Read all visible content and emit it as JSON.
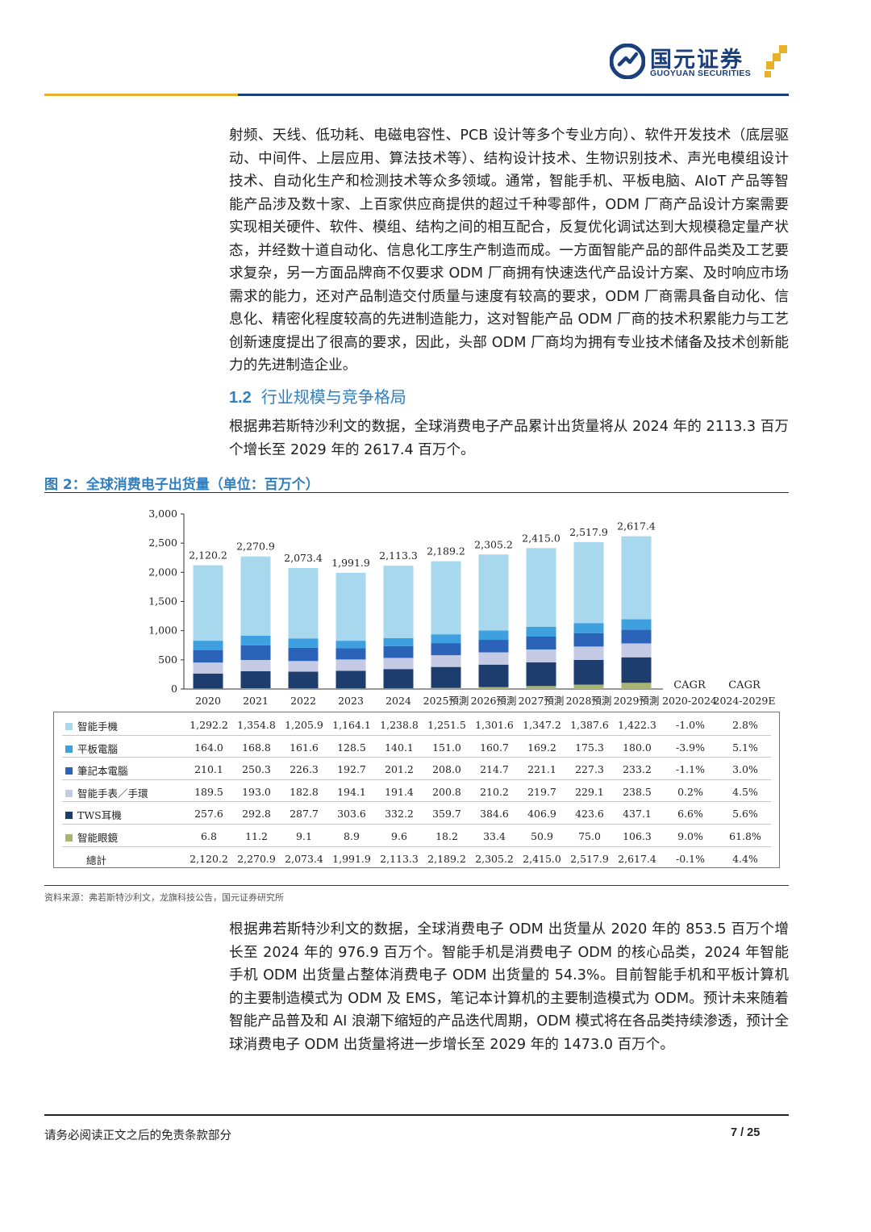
{
  "header": {
    "logo_cn": "国元证券",
    "logo_en": "GUOYUAN SECURITIES",
    "brand_color": "#1b3f7a",
    "accent_color": "#e9b02a"
  },
  "paragraph1": "射频、天线、低功耗、电磁电容性、PCB 设计等多个专业方向）、软件开发技术（底层驱动、中间件、上层应用、算法技术等）、结构设计技术、生物识别技术、声光电模组设计技术、自动化生产和检测技术等众多领域。通常，智能手机、平板电脑、AIoT 产品等智能产品涉及数十家、上百家供应商提供的超过千种零部件，ODM 厂商产品设计方案需要实现相关硬件、软件、模组、结构之间的相互配合，反复优化调试达到大规模稳定量产状态，并经数十道自动化、信息化工序生产制造而成。一方面智能产品的部件品类及工艺要求复杂，另一方面品牌商不仅要求 ODM 厂商拥有快速迭代产品设计方案、及时响应市场需求的能力，还对产品制造交付质量与速度有较高的要求，ODM 厂商需具备自动化、信息化、精密化程度较高的先进制造能力，这对智能产品 ODM 厂商的技术积累能力与工艺创新速度提出了很高的要求，因此，头部 ODM 厂商均为拥有专业技术储备及技术创新能力的先进制造企业。",
  "section": {
    "number": "1.2",
    "title": "行业规模与竞争格局"
  },
  "paragraph2": "根据弗若斯特沙利文的数据，全球消费电子产品累计出货量将从 2024 年的 2113.3 百万个增长至 2029 年的 2617.4 百万个。",
  "figure_title": "图 2：全球消费电子出货量（单位：百万个）",
  "chart_data": {
    "type": "bar",
    "stacked": true,
    "categories": [
      "2020",
      "2021",
      "2022",
      "2023",
      "2024",
      "2025預測",
      "2026預測",
      "2027預測",
      "2028預測",
      "2029預測"
    ],
    "yticks": [
      "0",
      "500",
      "1,000",
      "1,500",
      "2,000",
      "2,500",
      "3,000"
    ],
    "ylim": [
      0,
      3000
    ],
    "totals_labels": [
      "2,120.2",
      "2,270.9",
      "2,073.4",
      "1,991.9",
      "2,113.3",
      "2,189.2",
      "2,305.2",
      "2,415.0",
      "2,517.9",
      "2,617.4"
    ],
    "cagr_headers": [
      [
        "CAGR",
        "2020-2024"
      ],
      [
        "CAGR",
        "2024-2029E"
      ]
    ],
    "series": [
      {
        "name": "智能手機",
        "color": "#a8d8ee",
        "values": [
          1292.2,
          1354.8,
          1205.9,
          1164.1,
          1238.8,
          1251.5,
          1301.6,
          1347.2,
          1387.6,
          1422.3
        ],
        "labels": [
          "1,292.2",
          "1,354.8",
          "1,205.9",
          "1,164.1",
          "1,238.8",
          "1,251.5",
          "1,301.6",
          "1,347.2",
          "1,387.6",
          "1,422.3"
        ],
        "cagr": [
          "-1.0%",
          "2.8%"
        ]
      },
      {
        "name": "平板電腦",
        "color": "#3fa0e0",
        "values": [
          164.0,
          168.8,
          161.6,
          128.5,
          140.1,
          151.0,
          160.7,
          169.2,
          175.3,
          180.0
        ],
        "labels": [
          "164.0",
          "168.8",
          "161.6",
          "128.5",
          "140.1",
          "151.0",
          "160.7",
          "169.2",
          "175.3",
          "180.0"
        ],
        "cagr": [
          "-3.9%",
          "5.1%"
        ]
      },
      {
        "name": "筆記本電腦",
        "color": "#2b63b8",
        "values": [
          210.1,
          250.3,
          226.3,
          192.7,
          201.2,
          208.0,
          214.7,
          221.1,
          227.3,
          233.2
        ],
        "labels": [
          "210.1",
          "250.3",
          "226.3",
          "192.7",
          "201.2",
          "208.0",
          "214.7",
          "221.1",
          "227.3",
          "233.2"
        ],
        "cagr": [
          "-1.1%",
          "3.0%"
        ]
      },
      {
        "name": "智能手表／手環",
        "color": "#c4c9e4",
        "values": [
          189.5,
          193.0,
          182.8,
          194.1,
          191.4,
          200.8,
          210.2,
          219.7,
          229.1,
          238.5
        ],
        "labels": [
          "189.5",
          "193.0",
          "182.8",
          "194.1",
          "191.4",
          "200.8",
          "210.2",
          "219.7",
          "229.1",
          "238.5"
        ],
        "cagr": [
          "0.2%",
          "4.5%"
        ]
      },
      {
        "name": "TWS耳機",
        "color": "#1c3d6e",
        "values": [
          257.6,
          292.8,
          287.7,
          303.6,
          332.2,
          359.7,
          384.6,
          406.9,
          423.6,
          437.1
        ],
        "labels": [
          "257.6",
          "292.8",
          "287.7",
          "303.6",
          "332.2",
          "359.7",
          "384.6",
          "406.9",
          "423.6",
          "437.1"
        ],
        "cagr": [
          "6.6%",
          "5.6%"
        ]
      },
      {
        "name": "智能眼鏡",
        "color": "#a9b56e",
        "values": [
          6.8,
          11.2,
          9.1,
          8.9,
          9.6,
          18.2,
          33.4,
          50.9,
          75.0,
          106.3
        ],
        "labels": [
          "6.8",
          "11.2",
          "9.1",
          "8.9",
          "9.6",
          "18.2",
          "33.4",
          "50.9",
          "75.0",
          "106.3"
        ],
        "cagr": [
          "9.0%",
          "61.8%"
        ]
      }
    ],
    "total_row": {
      "name": "總計",
      "labels": [
        "2,120.2",
        "2,270.9",
        "2,073.4",
        "1,991.9",
        "2,113.3",
        "2,189.2",
        "2,305.2",
        "2,415.0",
        "2,517.9",
        "2,617.4"
      ],
      "cagr": [
        "-0.1%",
        "4.4%"
      ]
    }
  },
  "source": "资料来源：弗若斯特沙利文，龙旗科技公告，国元证券研究所",
  "paragraph3": "根据弗若斯特沙利文的数据，全球消费电子 ODM 出货量从 2020 年的 853.5 百万个增长至 2024 年的 976.9 百万个。智能手机是消费电子 ODM 的核心品类，2024 年智能手机 ODM 出货量占整体消费电子 ODM 出货量的 54.3%。目前智能手机和平板计算机的主要制造模式为 ODM 及 EMS，笔记本计算机的主要制造模式为 ODM。预计未来随着智能产品普及和 AI 浪潮下缩短的产品迭代周期，ODM 模式将在各品类持续渗透，预计全球消费电子 ODM 出货量将进一步增长至 2029 年的 1473.0 百万个。",
  "footer": {
    "disclaimer": "请务必阅读正文之后的免责条款部分",
    "page": "7 / 25"
  }
}
